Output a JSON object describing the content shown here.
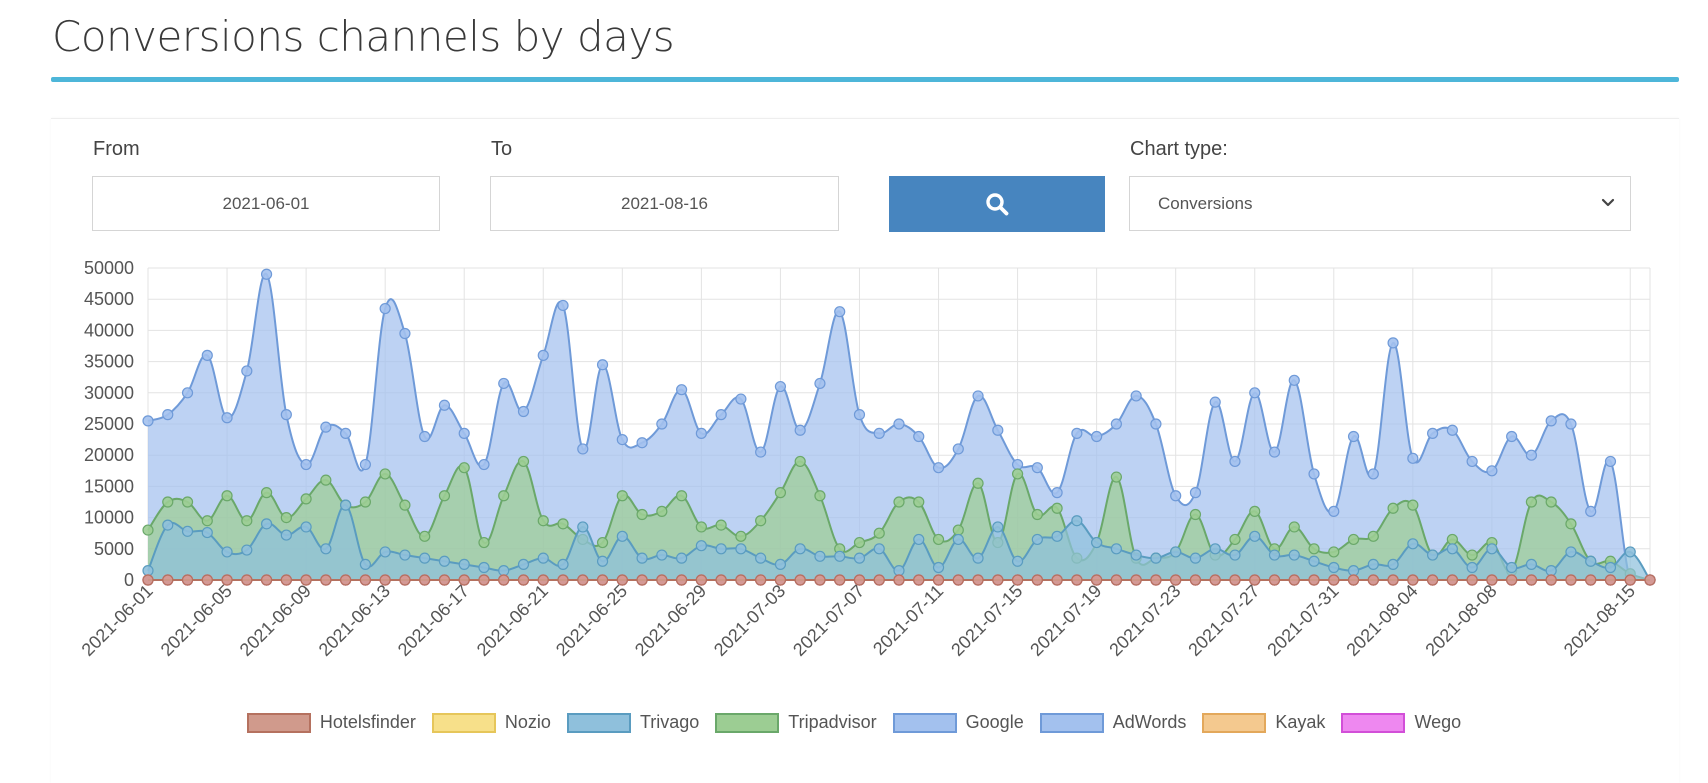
{
  "page": {
    "title": "Conversions channels by days"
  },
  "filters": {
    "from_label": "From",
    "from_value": "2021-06-01",
    "to_label": "To",
    "to_value": "2021-08-16",
    "chart_type_label": "Chart type:",
    "chart_type_value": "Conversions",
    "search_icon": "search-icon"
  },
  "colors": {
    "accent": "#4db6d9",
    "button": "#4785bf"
  },
  "chart_data": {
    "type": "area",
    "title": "",
    "xlabel": "",
    "ylabel": "",
    "ylim": [
      0,
      50000
    ],
    "yticks": [
      0,
      5000,
      10000,
      15000,
      20000,
      25000,
      30000,
      35000,
      40000,
      45000,
      50000
    ],
    "xtick_labels": [
      "2021-06-01",
      "2021-06-05",
      "2021-06-09",
      "2021-06-13",
      "2021-06-17",
      "2021-06-21",
      "2021-06-25",
      "2021-06-29",
      "2021-07-03",
      "2021-07-07",
      "2021-07-11",
      "2021-07-15",
      "2021-07-19",
      "2021-07-23",
      "2021-07-27",
      "2021-07-31",
      "2021-08-04",
      "2021-08-08",
      "2021-08-15"
    ],
    "grid": true,
    "legend_position": "bottom",
    "x": [
      "2021-06-01",
      "2021-06-02",
      "2021-06-03",
      "2021-06-04",
      "2021-06-05",
      "2021-06-06",
      "2021-06-07",
      "2021-06-08",
      "2021-06-09",
      "2021-06-10",
      "2021-06-11",
      "2021-06-12",
      "2021-06-13",
      "2021-06-14",
      "2021-06-15",
      "2021-06-16",
      "2021-06-17",
      "2021-06-18",
      "2021-06-19",
      "2021-06-20",
      "2021-06-21",
      "2021-06-22",
      "2021-06-23",
      "2021-06-24",
      "2021-06-25",
      "2021-06-26",
      "2021-06-27",
      "2021-06-28",
      "2021-06-29",
      "2021-06-30",
      "2021-07-01",
      "2021-07-02",
      "2021-07-03",
      "2021-07-04",
      "2021-07-05",
      "2021-07-06",
      "2021-07-07",
      "2021-07-08",
      "2021-07-09",
      "2021-07-10",
      "2021-07-11",
      "2021-07-12",
      "2021-07-13",
      "2021-07-14",
      "2021-07-15",
      "2021-07-16",
      "2021-07-17",
      "2021-07-18",
      "2021-07-19",
      "2021-07-20",
      "2021-07-21",
      "2021-07-22",
      "2021-07-23",
      "2021-07-24",
      "2021-07-25",
      "2021-07-26",
      "2021-07-27",
      "2021-07-28",
      "2021-07-29",
      "2021-07-30",
      "2021-07-31",
      "2021-08-01",
      "2021-08-02",
      "2021-08-03",
      "2021-08-04",
      "2021-08-05",
      "2021-08-06",
      "2021-08-07",
      "2021-08-08",
      "2021-08-09",
      "2021-08-10",
      "2021-08-11",
      "2021-08-12",
      "2021-08-13",
      "2021-08-14",
      "2021-08-15",
      "2021-08-16"
    ],
    "series": [
      {
        "name": "Hotelsfinder",
        "color": "#b5715f",
        "fill": "#d09a8c",
        "values": [
          0,
          0,
          0,
          0,
          0,
          0,
          0,
          0,
          0,
          0,
          0,
          0,
          0,
          0,
          0,
          0,
          0,
          0,
          0,
          0,
          0,
          0,
          0,
          0,
          0,
          0,
          0,
          0,
          0,
          0,
          0,
          0,
          0,
          0,
          0,
          0,
          0,
          0,
          0,
          0,
          0,
          0,
          0,
          0,
          0,
          0,
          0,
          0,
          0,
          0,
          0,
          0,
          0,
          0,
          0,
          0,
          0,
          0,
          0,
          0,
          0,
          0,
          0,
          0,
          0,
          0,
          0,
          0,
          0,
          0,
          0,
          0,
          0,
          0,
          0,
          0,
          0
        ]
      },
      {
        "name": "Nozio",
        "color": "#e6c65a",
        "fill": "#f7e08a",
        "values": [
          0,
          0,
          0,
          0,
          0,
          0,
          0,
          0,
          0,
          0,
          0,
          0,
          0,
          0,
          0,
          0,
          0,
          0,
          0,
          0,
          0,
          0,
          0,
          0,
          0,
          0,
          0,
          0,
          0,
          0,
          0,
          0,
          0,
          0,
          0,
          0,
          0,
          0,
          0,
          0,
          0,
          0,
          0,
          0,
          0,
          0,
          0,
          0,
          0,
          0,
          0,
          0,
          0,
          0,
          0,
          0,
          0,
          0,
          0,
          0,
          0,
          0,
          0,
          0,
          0,
          0,
          0,
          0,
          0,
          0,
          0,
          0,
          0,
          0,
          0,
          0,
          0
        ]
      },
      {
        "name": "Trivago",
        "color": "#5a9cc0",
        "fill": "#8fc0dc",
        "values": [
          1500,
          8800,
          7800,
          7600,
          4500,
          4800,
          9000,
          7200,
          8500,
          5000,
          12000,
          2500,
          4500,
          4000,
          3500,
          3000,
          2500,
          2000,
          1500,
          2500,
          3500,
          2500,
          8500,
          3000,
          7000,
          3500,
          4000,
          3500,
          5500,
          5000,
          5000,
          3500,
          2500,
          5000,
          3800,
          3800,
          3500,
          5000,
          1500,
          6500,
          2000,
          6500,
          3500,
          8500,
          3000,
          6500,
          7000,
          9500,
          6000,
          5000,
          4000,
          3500,
          4500,
          3500,
          5000,
          4000,
          7000,
          4000,
          4000,
          3000,
          2000,
          1500,
          2500,
          2500,
          5800,
          4000,
          5000,
          2000,
          5000,
          2000,
          2500,
          1500,
          4500,
          3000,
          2000,
          4500,
          0
        ]
      },
      {
        "name": "Tripadvisor",
        "color": "#6aa86a",
        "fill": "#9ccd93",
        "values": [
          8000,
          12500,
          12500,
          9500,
          13500,
          9500,
          14000,
          10000,
          13000,
          16000,
          12000,
          12500,
          17000,
          12000,
          7000,
          13500,
          18000,
          6000,
          13500,
          19000,
          9500,
          9000,
          6500,
          6000,
          13500,
          10500,
          11000,
          13500,
          8500,
          8800,
          7000,
          9500,
          14000,
          19000,
          13500,
          5000,
          6000,
          7500,
          12500,
          12500,
          6500,
          8000,
          15500,
          6000,
          17000,
          10500,
          11500,
          3500,
          6000,
          16500,
          3500,
          3500,
          4500,
          10500,
          4000,
          6500,
          11000,
          5000,
          8500,
          5000,
          4500,
          6500,
          7000,
          11500,
          12000,
          4000,
          6500,
          4000,
          6000,
          1500,
          12500,
          12500,
          9000,
          3000,
          3000,
          1000,
          0
        ]
      },
      {
        "name": "Google",
        "color": "#6f9ad8",
        "fill": "#a3c1ee",
        "values": [
          25500,
          26500,
          30000,
          36000,
          26000,
          33500,
          49000,
          26500,
          18500,
          24500,
          23500,
          18500,
          43500,
          39500,
          23000,
          28000,
          23500,
          18500,
          31500,
          27000,
          36000,
          44000,
          21000,
          34500,
          22500,
          22000,
          25000,
          30500,
          23500,
          26500,
          29000,
          20500,
          31000,
          24000,
          31500,
          43000,
          26500,
          23500,
          25000,
          23000,
          18000,
          21000,
          29500,
          24000,
          18500,
          18000,
          14000,
          23500,
          23000,
          25000,
          29500,
          25000,
          13500,
          14000,
          28500,
          19000,
          30000,
          20500,
          32000,
          17000,
          11000,
          23000,
          17000,
          38000,
          19500,
          23500,
          24000,
          19000,
          17500,
          23000,
          20000,
          25500,
          25000,
          11000,
          19000,
          0,
          0
        ]
      },
      {
        "name": "AdWords",
        "color": "#6f9ad8",
        "fill": "#a3c1ee",
        "values": [
          0,
          0,
          0,
          0,
          0,
          0,
          0,
          0,
          0,
          0,
          0,
          0,
          0,
          0,
          0,
          0,
          0,
          0,
          0,
          0,
          0,
          0,
          0,
          0,
          0,
          0,
          0,
          0,
          0,
          0,
          0,
          0,
          0,
          0,
          0,
          0,
          0,
          0,
          0,
          0,
          0,
          0,
          0,
          0,
          0,
          0,
          0,
          0,
          0,
          0,
          0,
          0,
          0,
          0,
          0,
          0,
          0,
          0,
          0,
          0,
          0,
          0,
          0,
          0,
          0,
          0,
          0,
          0,
          0,
          0,
          0,
          0,
          0,
          0,
          0,
          0,
          0
        ]
      },
      {
        "name": "Kayak",
        "color": "#e3a85b",
        "fill": "#f4c98f",
        "values": [
          0,
          0,
          0,
          0,
          0,
          0,
          0,
          0,
          0,
          0,
          0,
          0,
          0,
          0,
          0,
          0,
          0,
          0,
          0,
          0,
          0,
          0,
          0,
          0,
          0,
          0,
          0,
          0,
          0,
          0,
          0,
          0,
          0,
          0,
          0,
          0,
          0,
          0,
          0,
          0,
          0,
          0,
          0,
          0,
          0,
          0,
          0,
          0,
          0,
          0,
          0,
          0,
          0,
          0,
          0,
          0,
          0,
          0,
          0,
          0,
          0,
          0,
          0,
          0,
          0,
          0,
          0,
          0,
          0,
          0,
          0,
          0,
          0,
          0,
          0,
          0,
          0
        ]
      },
      {
        "name": "Wego",
        "color": "#d24fd8",
        "fill": "#ee88f0",
        "values": [
          0,
          0,
          0,
          0,
          0,
          0,
          0,
          0,
          0,
          0,
          0,
          0,
          0,
          0,
          0,
          0,
          0,
          0,
          0,
          0,
          0,
          0,
          0,
          0,
          0,
          0,
          0,
          0,
          0,
          0,
          0,
          0,
          0,
          0,
          0,
          0,
          0,
          0,
          0,
          0,
          0,
          0,
          0,
          0,
          0,
          0,
          0,
          0,
          0,
          0,
          0,
          0,
          0,
          0,
          0,
          0,
          0,
          0,
          0,
          0,
          0,
          0,
          0,
          0,
          0,
          0,
          0,
          0,
          0,
          0,
          0,
          0,
          0,
          0,
          0,
          0,
          0
        ]
      }
    ]
  }
}
